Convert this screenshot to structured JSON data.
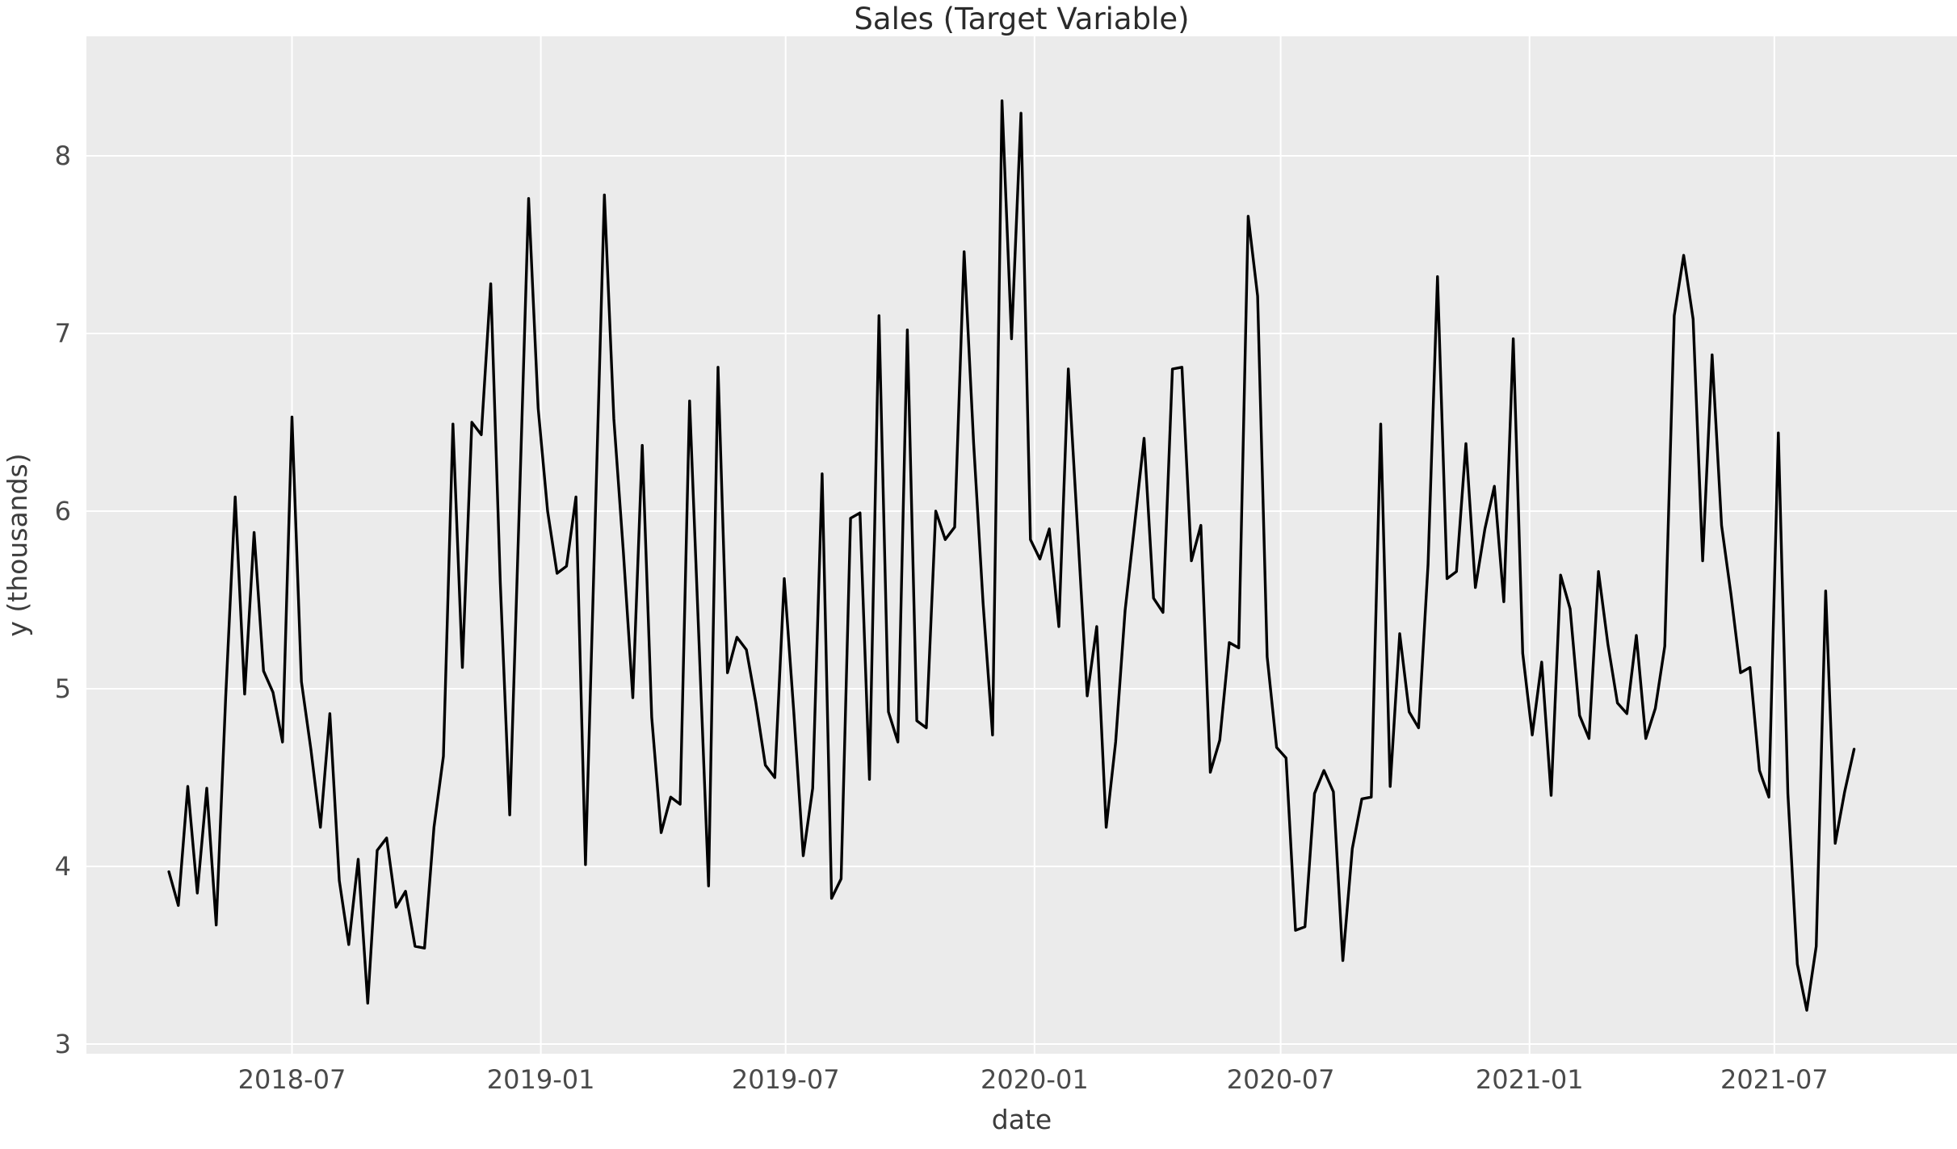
{
  "title": "Sales (Target Variable)",
  "chart_data": {
    "type": "line",
    "title": "Sales (Target Variable)",
    "xlabel": "date",
    "ylabel": "y (thousands)",
    "series_name": "sales",
    "frequency": "weekly",
    "start_date": "2018-04-01",
    "end_date": "2021-08-29",
    "x_tick_labels": [
      "2018-07",
      "2019-01",
      "2019-07",
      "2020-01",
      "2020-07",
      "2021-01",
      "2021-07"
    ],
    "x_tick_dates": [
      "2018-07-01",
      "2019-01-01",
      "2019-07-01",
      "2020-01-01",
      "2020-07-01",
      "2021-01-01",
      "2021-07-01"
    ],
    "y_ticks": [
      3,
      4,
      5,
      6,
      7,
      8
    ],
    "ylim": [
      2.95,
      8.67
    ],
    "grid": true,
    "legend_position": "none",
    "line_color": "#000000",
    "plot_background_color": "#ebebeb",
    "grid_color": "#ffffff",
    "figure_background_color": "#ffffff",
    "values": [
      3.97,
      3.78,
      4.45,
      3.85,
      4.44,
      3.67,
      4.95,
      6.08,
      4.97,
      5.88,
      5.1,
      4.98,
      4.7,
      6.53,
      5.04,
      4.66,
      4.22,
      4.86,
      3.92,
      3.56,
      4.04,
      3.23,
      4.09,
      4.16,
      3.77,
      3.86,
      3.55,
      3.54,
      4.22,
      4.62,
      6.49,
      5.12,
      6.5,
      6.43,
      7.28,
      5.6,
      4.29,
      6.0,
      7.76,
      6.58,
      6.0,
      5.65,
      5.69,
      6.08,
      4.01,
      5.89,
      7.78,
      6.52,
      5.77,
      4.95,
      6.37,
      4.84,
      4.19,
      4.39,
      4.35,
      6.62,
      5.26,
      3.89,
      6.81,
      5.09,
      5.29,
      5.22,
      4.92,
      4.57,
      4.5,
      5.62,
      4.87,
      4.06,
      4.44,
      6.21,
      3.82,
      3.93,
      5.96,
      5.99,
      4.49,
      7.1,
      4.87,
      4.7,
      7.02,
      4.82,
      4.78,
      6.0,
      5.84,
      5.91,
      7.46,
      6.38,
      5.48,
      4.74,
      8.31,
      6.97,
      8.24,
      5.84,
      5.73,
      5.9,
      5.35,
      6.8,
      5.88,
      4.96,
      5.35,
      4.22,
      4.7,
      5.44,
      5.92,
      6.41,
      5.51,
      5.43,
      6.8,
      6.81,
      5.72,
      5.92,
      4.53,
      4.71,
      5.26,
      5.23,
      7.66,
      7.21,
      5.18,
      4.67,
      4.61,
      3.64,
      3.66,
      4.41,
      4.54,
      4.42,
      3.47,
      4.1,
      4.38,
      4.39,
      6.49,
      4.45,
      5.31,
      4.87,
      4.78,
      5.7,
      7.32,
      5.62,
      5.66,
      6.38,
      5.57,
      5.9,
      6.14,
      5.49,
      6.97,
      5.2,
      4.74,
      5.15,
      4.4,
      5.64,
      5.45,
      4.85,
      4.72,
      5.66,
      5.25,
      4.92,
      4.86,
      5.3,
      4.72,
      4.89,
      5.24,
      7.1,
      7.44,
      7.08,
      5.72,
      6.88,
      5.92,
      5.53,
      5.09,
      5.12,
      4.54,
      4.39,
      6.44,
      4.41,
      3.45,
      3.19,
      3.55,
      5.55,
      4.13,
      4.42,
      4.66
    ]
  }
}
